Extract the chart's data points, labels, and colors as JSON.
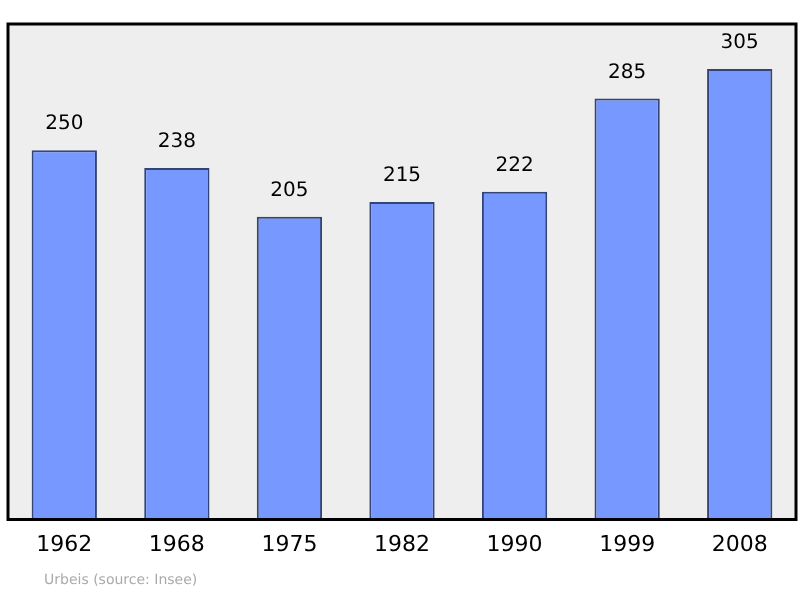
{
  "chart_data": {
    "type": "bar",
    "categories": [
      "1962",
      "1968",
      "1975",
      "1982",
      "1990",
      "1999",
      "2008"
    ],
    "values": [
      250,
      238,
      205,
      215,
      222,
      285,
      305
    ],
    "color": "#7799ff",
    "data_labels": true,
    "grid": false,
    "legend": false,
    "tick_labels": "x",
    "annotations": [
      "Urbeis    (source: Insee)"
    ]
  }
}
